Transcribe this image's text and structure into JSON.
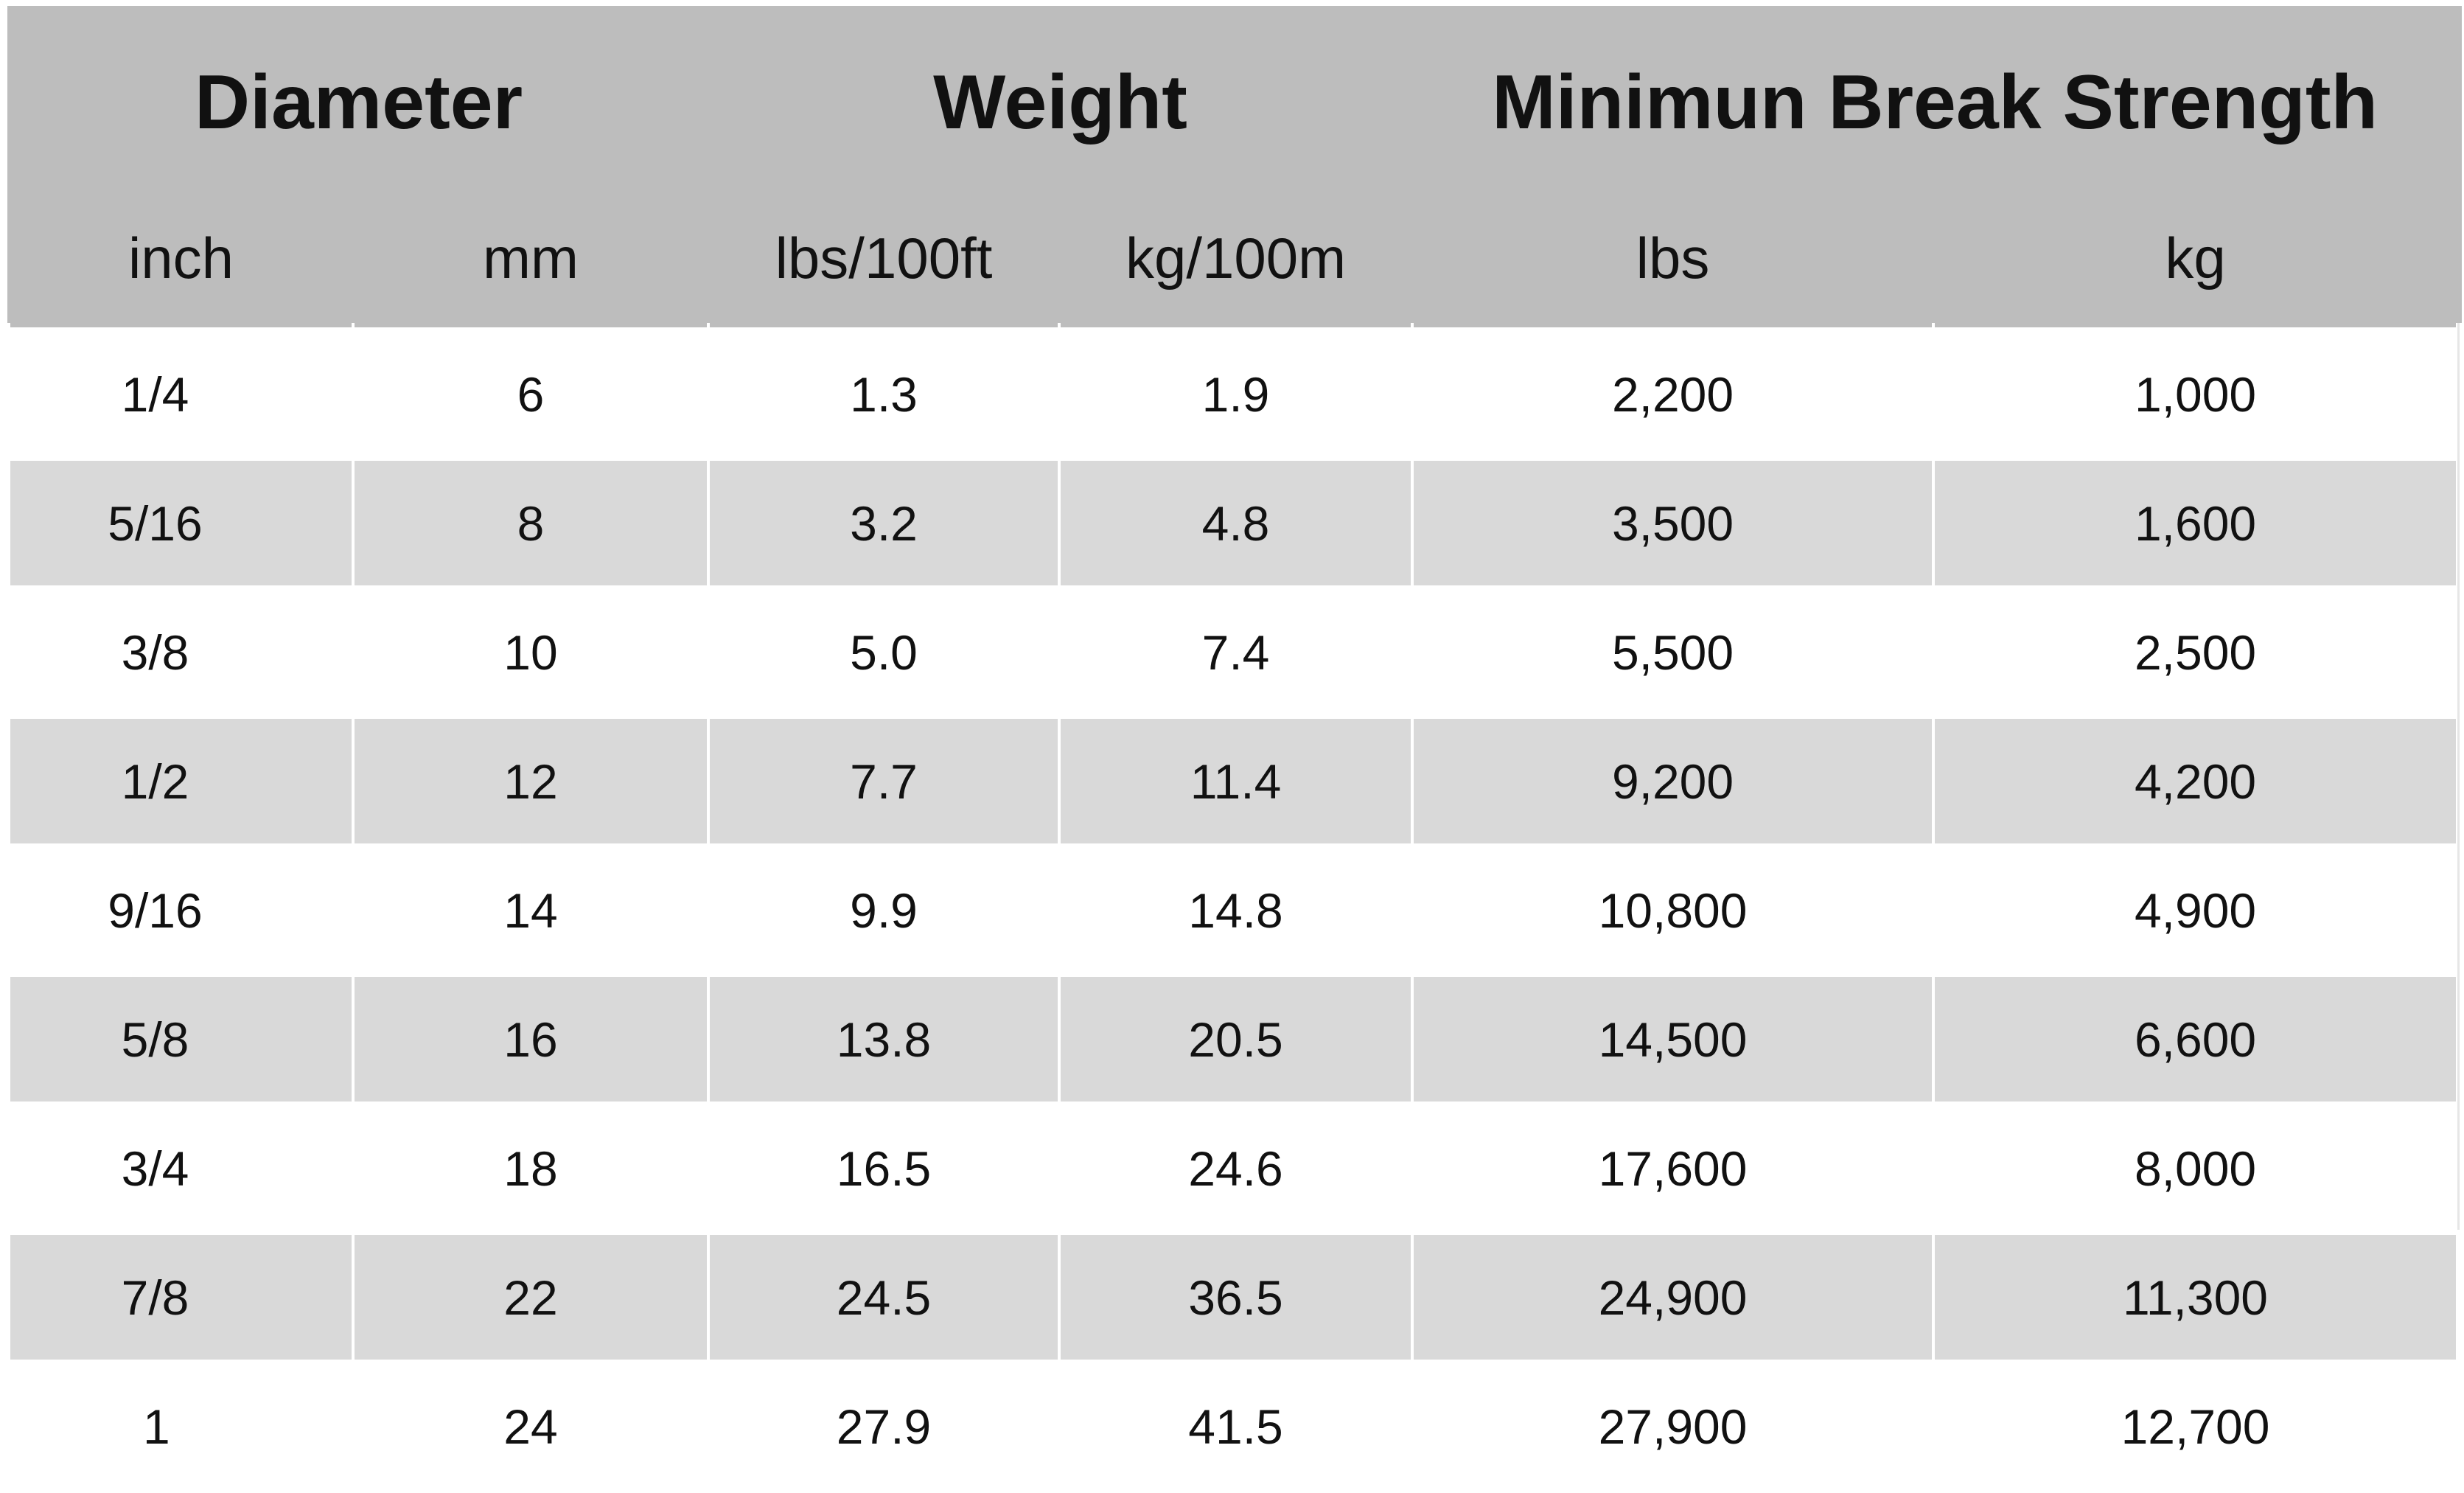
{
  "table": {
    "group_headers": [
      "Diameter",
      "Weight",
      "Minimun Break Strength"
    ],
    "unit_headers": [
      "inch",
      "mm",
      "lbs/100ft",
      "kg/100m",
      "lbs",
      "kg"
    ],
    "rows": [
      [
        "1/4",
        "6",
        "1.3",
        "1.9",
        "2,200",
        "1,000"
      ],
      [
        "5/16",
        "8",
        "3.2",
        "4.8",
        "3,500",
        "1,600"
      ],
      [
        "3/8",
        "10",
        "5.0",
        "7.4",
        "5,500",
        "2,500"
      ],
      [
        "1/2",
        "12",
        "7.7",
        "11.4",
        "9,200",
        "4,200"
      ],
      [
        "9/16",
        "14",
        "9.9",
        "14.8",
        "10,800",
        "4,900"
      ],
      [
        "5/8",
        "16",
        "13.8",
        "20.5",
        "14,500",
        "6,600"
      ],
      [
        "3/4",
        "18",
        "16.5",
        "24.6",
        "17,600",
        "8,000"
      ],
      [
        "7/8",
        "22",
        "24.5",
        "36.5",
        "24,900",
        "11,300"
      ],
      [
        "1",
        "24",
        "27.9",
        "41.5",
        "27,900",
        "12,700"
      ]
    ]
  },
  "colors": {
    "header_background": "#bdbdbd",
    "row_background_light": "#ffffff",
    "row_background_striped": "#d9d9d9",
    "text": "#111111"
  }
}
